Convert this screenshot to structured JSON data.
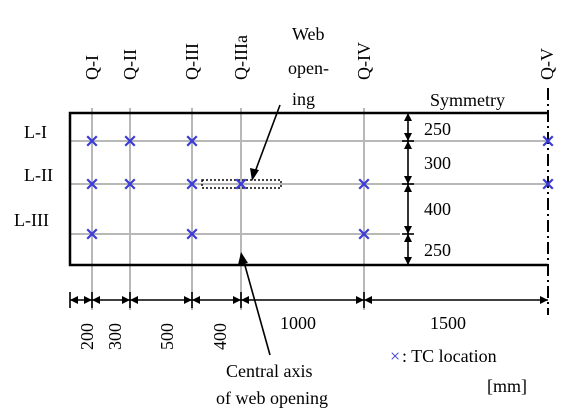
{
  "diagram": {
    "columns": [
      "Q-I",
      "Q-II",
      "Q-III",
      "Q-IIIa",
      "Q-IV",
      "Q-V"
    ],
    "rows": [
      "L-I",
      "L-II",
      "L-III"
    ],
    "symmetry_label": "Symmetry",
    "web_opening_label": [
      "Web",
      "open-",
      "ing"
    ],
    "central_axis_label": [
      "Central axis",
      "of web opening"
    ],
    "legend_marker": "×",
    "legend_text": ": TC location",
    "unit": "[mm]",
    "horizontal_dims": [
      "200",
      "300",
      "500",
      "400",
      "1000",
      "1500"
    ],
    "vertical_dims": [
      "250",
      "300",
      "400",
      "250"
    ],
    "colors": {
      "tc_marker": "#3a3ad8",
      "grid_line": "#b8b8b8",
      "outline": "#000000"
    }
  }
}
